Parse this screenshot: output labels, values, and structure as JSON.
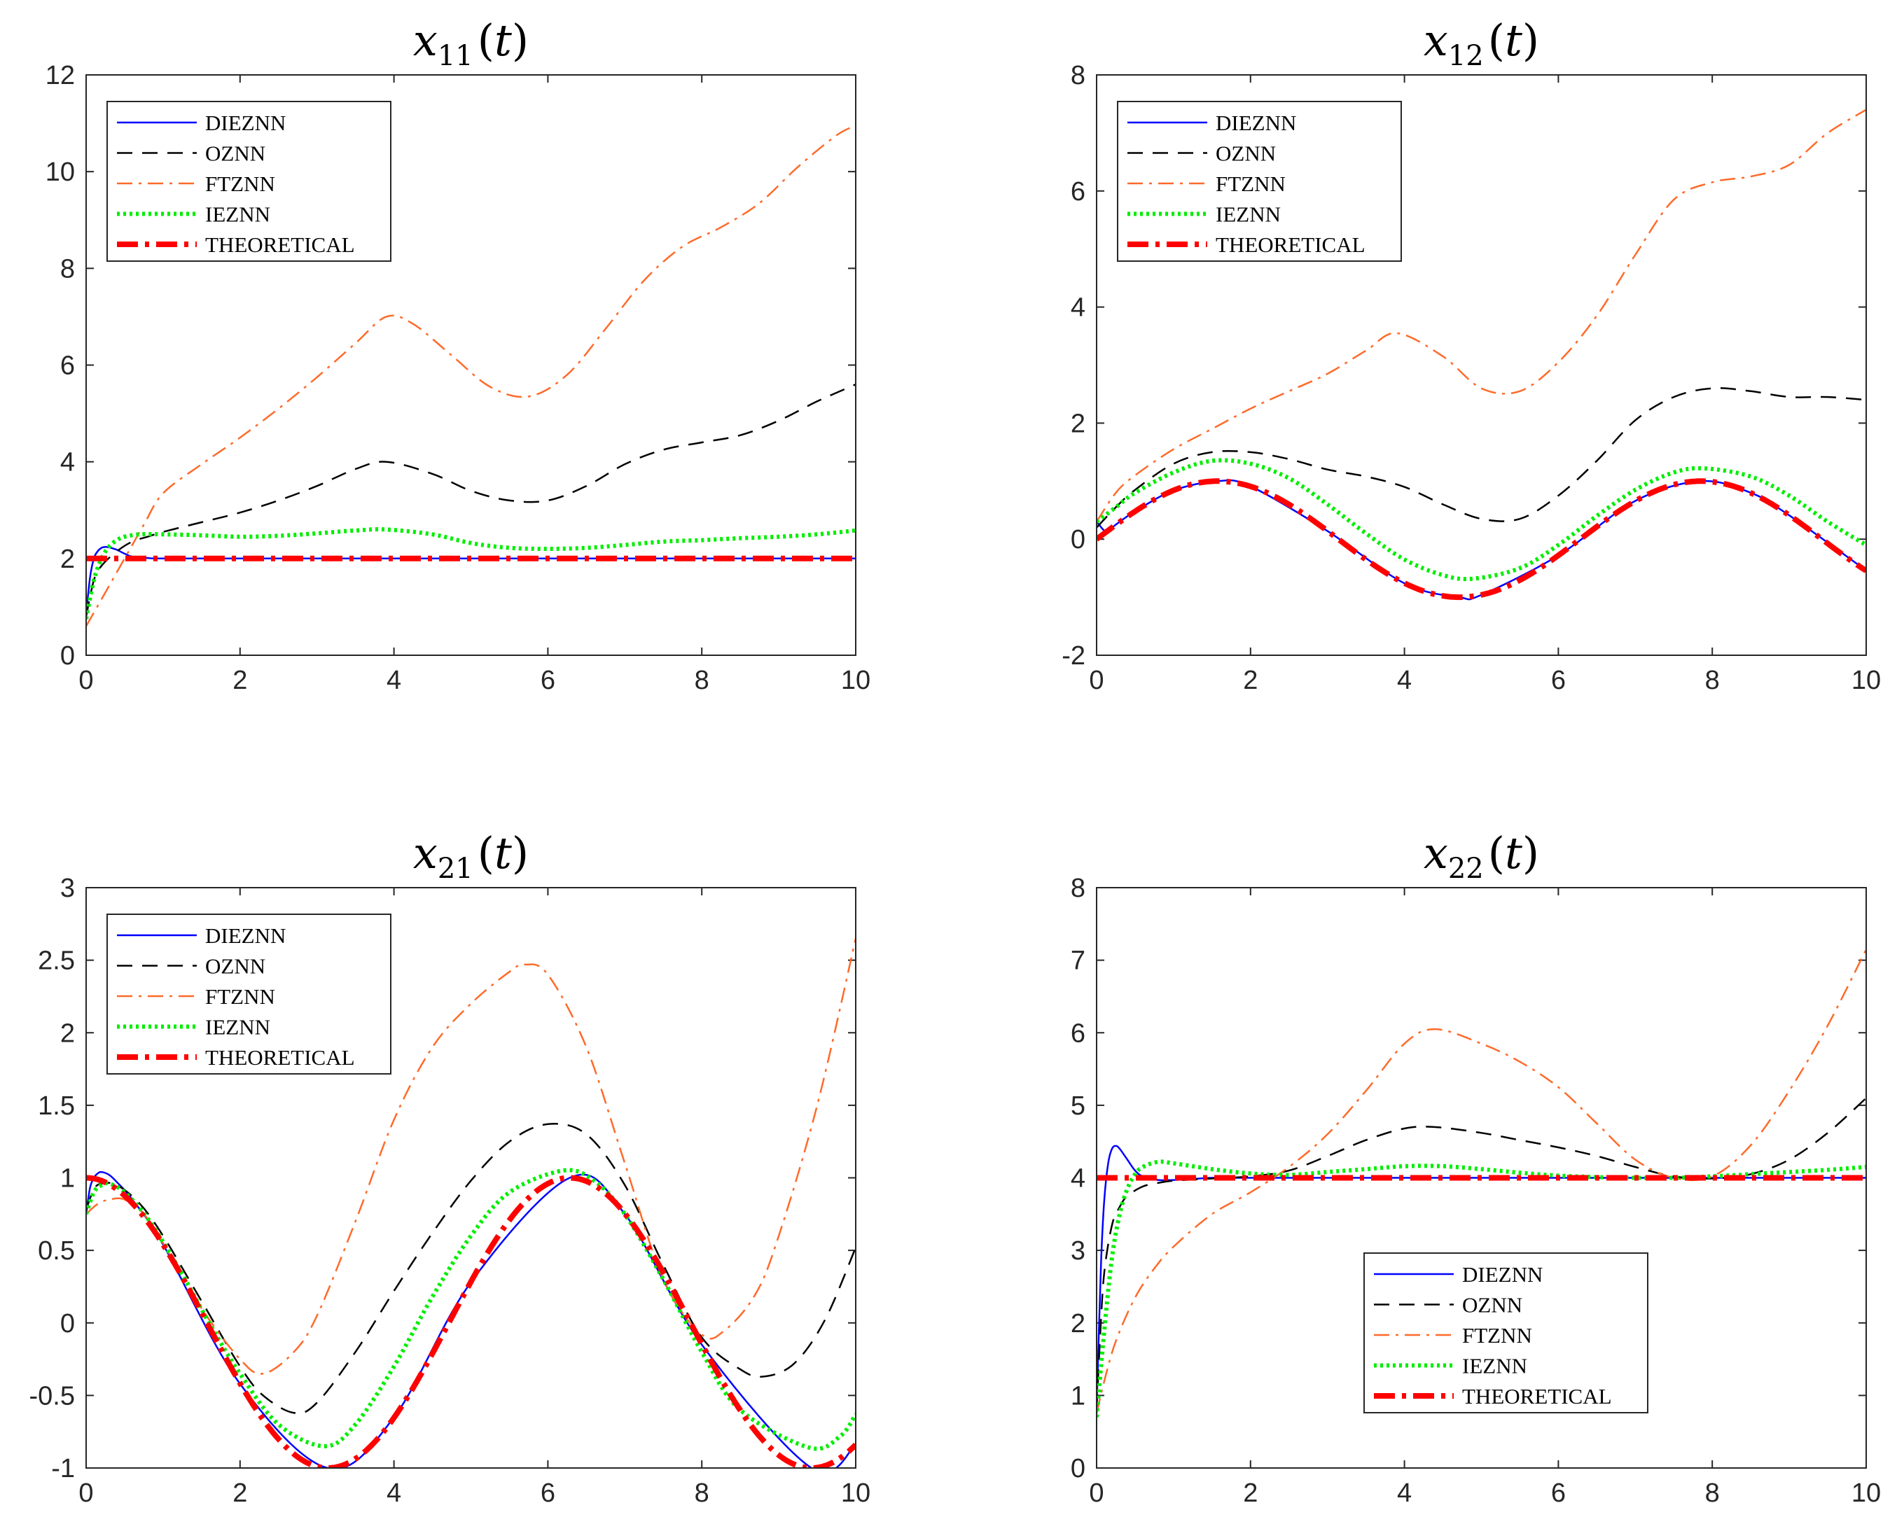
{
  "chart_data": [
    {
      "type": "line",
      "title": "x11(t)",
      "title_var": "x",
      "title_sub": "11",
      "title_arg": "t",
      "xlim": [
        0,
        10
      ],
      "ylim": [
        0,
        12
      ],
      "xticks": [
        0,
        2,
        4,
        6,
        8,
        10
      ],
      "yticks": [
        0,
        2,
        4,
        6,
        8,
        10,
        12
      ],
      "xticklabels": [
        "0",
        "2",
        "4",
        "6",
        "8",
        "10"
      ],
      "yticklabels": [
        "0",
        "2",
        "4",
        "6",
        "8",
        "10",
        "12"
      ],
      "legend_position": "top-left",
      "series": [
        {
          "name": "DIEZNN",
          "x": [
            0,
            0.05,
            0.1,
            0.15,
            0.2,
            0.25,
            0.3,
            0.4,
            0.5,
            0.6,
            0.8,
            1,
            2,
            4,
            6,
            8,
            10
          ],
          "values": [
            0.85,
            1.6,
            2.0,
            2.15,
            2.22,
            2.24,
            2.23,
            2.18,
            2.1,
            2.04,
            2.01,
            2.0,
            2.0,
            2.0,
            2.0,
            2.0,
            2.0
          ]
        },
        {
          "name": "OZNN",
          "x": [
            0,
            0.1,
            0.2,
            0.4,
            0.6,
            0.8,
            1,
            1.5,
            2,
            2.5,
            3,
            3.5,
            3.9,
            4.5,
            5,
            5.5,
            6,
            6.5,
            7,
            7.5,
            8,
            8.5,
            9,
            9.5,
            10
          ],
          "values": [
            0.8,
            1.55,
            1.85,
            2.15,
            2.35,
            2.45,
            2.55,
            2.75,
            2.95,
            3.2,
            3.5,
            3.85,
            4.0,
            3.75,
            3.4,
            3.2,
            3.2,
            3.5,
            3.95,
            4.25,
            4.4,
            4.55,
            4.85,
            5.25,
            5.6
          ]
        },
        {
          "name": "FTZNN",
          "x": [
            0,
            0.25,
            0.5,
            0.75,
            1,
            1.5,
            2,
            2.5,
            3,
            3.5,
            3.9,
            4.25,
            4.75,
            5.25,
            5.75,
            6.25,
            6.75,
            7.25,
            7.75,
            8.25,
            8.75,
            9.25,
            9.75,
            10
          ],
          "values": [
            0.6,
            1.3,
            2.0,
            2.7,
            3.35,
            3.95,
            4.5,
            5.1,
            5.75,
            6.45,
            7.0,
            6.85,
            6.2,
            5.55,
            5.35,
            5.8,
            6.75,
            7.75,
            8.45,
            8.85,
            9.35,
            10.1,
            10.75,
            10.95
          ]
        },
        {
          "name": "IEZNN",
          "x": [
            0,
            0.1,
            0.2,
            0.3,
            0.4,
            0.5,
            0.7,
            1,
            1.5,
            2,
            2.5,
            3,
            3.5,
            3.9,
            4.5,
            5,
            5.5,
            6,
            6.5,
            7,
            7.5,
            8,
            8.5,
            9,
            9.5,
            10
          ],
          "values": [
            0.75,
            1.55,
            2.0,
            2.25,
            2.38,
            2.45,
            2.5,
            2.5,
            2.48,
            2.45,
            2.47,
            2.52,
            2.58,
            2.6,
            2.5,
            2.32,
            2.22,
            2.2,
            2.22,
            2.28,
            2.35,
            2.38,
            2.42,
            2.45,
            2.5,
            2.58
          ]
        },
        {
          "name": "THEORETICAL",
          "x": [
            0,
            10
          ],
          "values": [
            2,
            2
          ]
        }
      ]
    },
    {
      "type": "line",
      "title": "x12(t)",
      "title_var": "x",
      "title_sub": "12",
      "title_arg": "t",
      "xlim": [
        0,
        10
      ],
      "ylim": [
        -2,
        8
      ],
      "xticks": [
        0,
        2,
        4,
        6,
        8,
        10
      ],
      "yticks": [
        -2,
        0,
        2,
        4,
        6,
        8
      ],
      "xticklabels": [
        "0",
        "2",
        "4",
        "6",
        "8",
        "10"
      ],
      "yticklabels": [
        "-2",
        "0",
        "2",
        "4",
        "6",
        "8"
      ],
      "legend_position": "top-left",
      "series": [
        {
          "name": "DIEZNN",
          "x": [
            0,
            0.05,
            0.1,
            0.15,
            0.2,
            0.3,
            0.5,
            1,
            1.5708,
            2,
            3,
            4,
            4.7124,
            5,
            6,
            7,
            7.854,
            8.5,
            9,
            10
          ],
          "values": [
            0.3,
            0.22,
            0.15,
            0.16,
            0.2,
            0.3,
            0.48,
            0.84,
            1.0,
            0.91,
            0.14,
            -0.76,
            -1.0,
            -0.96,
            -0.28,
            0.66,
            1.0,
            0.8,
            0.41,
            -0.54
          ]
        },
        {
          "name": "OZNN",
          "x": [
            0,
            0.25,
            0.5,
            1,
            1.5,
            2,
            2.5,
            3,
            3.5,
            4,
            4.5,
            5,
            5.5,
            6,
            6.5,
            7,
            7.5,
            8,
            8.5,
            9,
            9.5,
            10
          ],
          "values": [
            0.2,
            0.55,
            0.85,
            1.3,
            1.5,
            1.5,
            1.38,
            1.2,
            1.08,
            0.9,
            0.6,
            0.35,
            0.35,
            0.75,
            1.35,
            2.05,
            2.45,
            2.6,
            2.55,
            2.45,
            2.45,
            2.4
          ]
        },
        {
          "name": "FTZNN",
          "x": [
            0,
            0.25,
            0.5,
            1,
            1.5,
            2,
            2.5,
            3,
            3.5,
            3.9,
            4.5,
            5,
            5.5,
            6,
            6.5,
            7,
            7.5,
            8,
            8.5,
            9,
            9.5,
            10
          ],
          "values": [
            0.3,
            0.8,
            1.1,
            1.55,
            1.9,
            2.25,
            2.55,
            2.85,
            3.25,
            3.55,
            3.15,
            2.6,
            2.55,
            3.05,
            3.85,
            4.9,
            5.85,
            6.15,
            6.25,
            6.45,
            7.0,
            7.4
          ]
        },
        {
          "name": "IEZNN",
          "x": [
            0,
            0.25,
            0.5,
            1,
            1.5,
            2,
            2.5,
            3,
            3.5,
            4,
            4.5,
            4.9,
            5.5,
            6,
            6.5,
            7,
            7.5,
            7.9,
            8.5,
            9,
            9.5,
            10
          ],
          "values": [
            0.3,
            0.55,
            0.8,
            1.15,
            1.35,
            1.3,
            1.05,
            0.6,
            0.1,
            -0.35,
            -0.62,
            -0.68,
            -0.5,
            -0.1,
            0.4,
            0.85,
            1.15,
            1.22,
            1.08,
            0.75,
            0.3,
            -0.1
          ]
        },
        {
          "name": "THEORETICAL",
          "fn": "sin",
          "x": [
            0,
            10
          ],
          "values": [
            0,
            -0.544
          ]
        }
      ]
    },
    {
      "type": "line",
      "title": "x21(t)",
      "title_var": "x",
      "title_sub": "21",
      "title_arg": "t",
      "xlim": [
        0,
        10
      ],
      "ylim": [
        -1,
        3
      ],
      "xticks": [
        0,
        2,
        4,
        6,
        8,
        10
      ],
      "yticks": [
        -1,
        -0.5,
        0,
        0.5,
        1,
        1.5,
        2,
        2.5,
        3
      ],
      "xticklabels": [
        "0",
        "2",
        "4",
        "6",
        "8",
        "10"
      ],
      "yticklabels": [
        "-1",
        "-0.5",
        "0",
        "0.5",
        "1",
        "1.5",
        "2",
        "2.5",
        "3"
      ],
      "legend_position": "top-left",
      "series": [
        {
          "name": "DIEZNN",
          "x": [
            0,
            0.05,
            0.1,
            0.15,
            0.2,
            0.3,
            0.4,
            0.6,
            1,
            2,
            3.1416,
            4,
            5,
            6.2832,
            7,
            8,
            9.4248,
            10
          ],
          "values": [
            0.75,
            0.93,
            1.0,
            1.03,
            1.04,
            1.02,
            0.97,
            0.85,
            0.54,
            -0.42,
            -1.0,
            -0.65,
            0.28,
            1.0,
            0.75,
            -0.15,
            -1.0,
            -0.84
          ]
        },
        {
          "name": "OZNN",
          "x": [
            0,
            0.1,
            0.2,
            0.4,
            0.7,
            1,
            1.5,
            2,
            2.3,
            2.7,
            3,
            3.5,
            4,
            4.5,
            5,
            5.5,
            6,
            6.5,
            7,
            7.5,
            8,
            8.5,
            8.8,
            9.2,
            9.6,
            10
          ],
          "values": [
            0.78,
            0.92,
            0.96,
            0.95,
            0.82,
            0.6,
            0.15,
            -0.3,
            -0.5,
            -0.62,
            -0.55,
            -0.2,
            0.22,
            0.62,
            0.98,
            1.25,
            1.37,
            1.3,
            0.95,
            0.4,
            -0.1,
            -0.32,
            -0.37,
            -0.28,
            0.02,
            0.52
          ]
        },
        {
          "name": "FTZNN",
          "x": [
            0,
            0.15,
            0.3,
            0.5,
            0.75,
            1,
            1.5,
            2,
            2.3,
            2.7,
            3,
            3.5,
            4,
            4.5,
            5,
            5.5,
            5.7,
            6,
            6.5,
            7,
            7.5,
            8,
            8.3,
            8.7,
            9,
            9.5,
            10
          ],
          "values": [
            0.75,
            0.82,
            0.85,
            0.85,
            0.75,
            0.55,
            0.1,
            -0.25,
            -0.35,
            -0.2,
            0.05,
            0.7,
            1.4,
            1.9,
            2.2,
            2.42,
            2.47,
            2.4,
            1.9,
            1.1,
            0.3,
            -0.08,
            -0.05,
            0.2,
            0.6,
            1.5,
            2.65
          ]
        },
        {
          "name": "IEZNN",
          "x": [
            0,
            0.1,
            0.2,
            0.3,
            0.5,
            0.8,
            1.2,
            1.6,
            2,
            2.5,
            3.1,
            3.5,
            4,
            4.5,
            5,
            5.5,
            6.2,
            6.6,
            7,
            7.5,
            8,
            8.5,
            9.4,
            9.8,
            10
          ],
          "values": [
            0.75,
            0.9,
            0.95,
            0.96,
            0.9,
            0.72,
            0.38,
            0.0,
            -0.35,
            -0.7,
            -0.85,
            -0.7,
            -0.3,
            0.18,
            0.6,
            0.9,
            1.05,
            0.98,
            0.75,
            0.3,
            -0.2,
            -0.6,
            -0.86,
            -0.78,
            -0.63
          ]
        },
        {
          "name": "THEORETICAL",
          "fn": "cos",
          "x": [
            0,
            10
          ],
          "values": [
            1,
            -0.839
          ]
        }
      ]
    },
    {
      "type": "line",
      "title": "x22(t)",
      "title_var": "x",
      "title_sub": "22",
      "title_arg": "t",
      "xlim": [
        0,
        10
      ],
      "ylim": [
        0,
        8
      ],
      "xticks": [
        0,
        2,
        4,
        6,
        8,
        10
      ],
      "yticks": [
        0,
        1,
        2,
        3,
        4,
        5,
        6,
        7,
        8
      ],
      "xticklabels": [
        "0",
        "2",
        "4",
        "6",
        "8",
        "10"
      ],
      "yticklabels": [
        "0",
        "1",
        "2",
        "3",
        "4",
        "5",
        "6",
        "7",
        "8"
      ],
      "legend_position": "bottom-center",
      "series": [
        {
          "name": "DIEZNN",
          "x": [
            0,
            0.03,
            0.06,
            0.1,
            0.15,
            0.2,
            0.25,
            0.3,
            0.4,
            0.5,
            0.6,
            0.8,
            1,
            1.2,
            1.5,
            2,
            4,
            6,
            8,
            10
          ],
          "values": [
            0.8,
            1.9,
            2.9,
            3.7,
            4.2,
            4.4,
            4.44,
            4.4,
            4.25,
            4.1,
            4.02,
            3.97,
            3.97,
            3.98,
            4.0,
            4.0,
            4.0,
            4.0,
            4.0,
            4.0
          ]
        },
        {
          "name": "OZNN",
          "x": [
            0,
            0.05,
            0.1,
            0.2,
            0.3,
            0.4,
            0.6,
            0.8,
            1,
            1.5,
            2,
            2.5,
            3,
            3.5,
            4,
            4.4,
            5,
            5.5,
            6,
            6.5,
            7,
            7.5,
            8,
            8.5,
            9,
            9.5,
            10
          ],
          "values": [
            0.8,
            1.9,
            2.7,
            3.35,
            3.6,
            3.75,
            3.88,
            3.93,
            3.96,
            3.99,
            4.02,
            4.1,
            4.3,
            4.52,
            4.68,
            4.7,
            4.62,
            4.52,
            4.42,
            4.3,
            4.15,
            4.02,
            3.99,
            4.05,
            4.25,
            4.62,
            5.1
          ]
        },
        {
          "name": "FTZNN",
          "x": [
            0,
            0.1,
            0.25,
            0.5,
            0.75,
            1,
            1.5,
            2,
            2.5,
            3,
            3.5,
            4,
            4.4,
            5,
            5.5,
            6,
            6.5,
            7,
            7.5,
            8,
            8.5,
            9,
            9.5,
            10
          ],
          "values": [
            0.75,
            1.2,
            1.75,
            2.35,
            2.75,
            3.05,
            3.5,
            3.8,
            4.15,
            4.6,
            5.2,
            5.85,
            6.05,
            5.85,
            5.6,
            5.25,
            4.75,
            4.25,
            4.0,
            4.02,
            4.45,
            5.2,
            6.1,
            7.15
          ]
        },
        {
          "name": "IEZNN",
          "x": [
            0,
            0.1,
            0.2,
            0.3,
            0.4,
            0.5,
            0.6,
            0.8,
            1,
            1.5,
            2,
            2.5,
            3,
            3.5,
            4,
            4.5,
            5,
            5.5,
            6,
            6.5,
            7,
            7.5,
            8,
            8.5,
            9,
            9.5,
            10
          ],
          "values": [
            0.7,
            1.9,
            2.9,
            3.5,
            3.85,
            4.05,
            4.15,
            4.22,
            4.2,
            4.12,
            4.06,
            4.04,
            4.08,
            4.12,
            4.16,
            4.16,
            4.12,
            4.07,
            4.03,
            4.01,
            4.0,
            4.0,
            4.02,
            4.05,
            4.08,
            4.11,
            4.15
          ]
        },
        {
          "name": "THEORETICAL",
          "x": [
            0,
            10
          ],
          "values": [
            4,
            4
          ]
        }
      ]
    }
  ],
  "styles": {
    "DIEZNN": {
      "color": "#0000ff",
      "dash": "",
      "width": 2.5
    },
    "OZNN": {
      "color": "#000000",
      "dash": "22,14",
      "width": 2.5
    },
    "FTZNN": {
      "color": "#ff6a2a",
      "dash": "22,9,4,9",
      "width": 2.5
    },
    "IEZNN": {
      "color": "#00ee00",
      "dash": "4,5",
      "width": 6
    },
    "THEORETICAL": {
      "color": "#ff0000",
      "dash": "30,10,6,10",
      "width": 8
    }
  }
}
